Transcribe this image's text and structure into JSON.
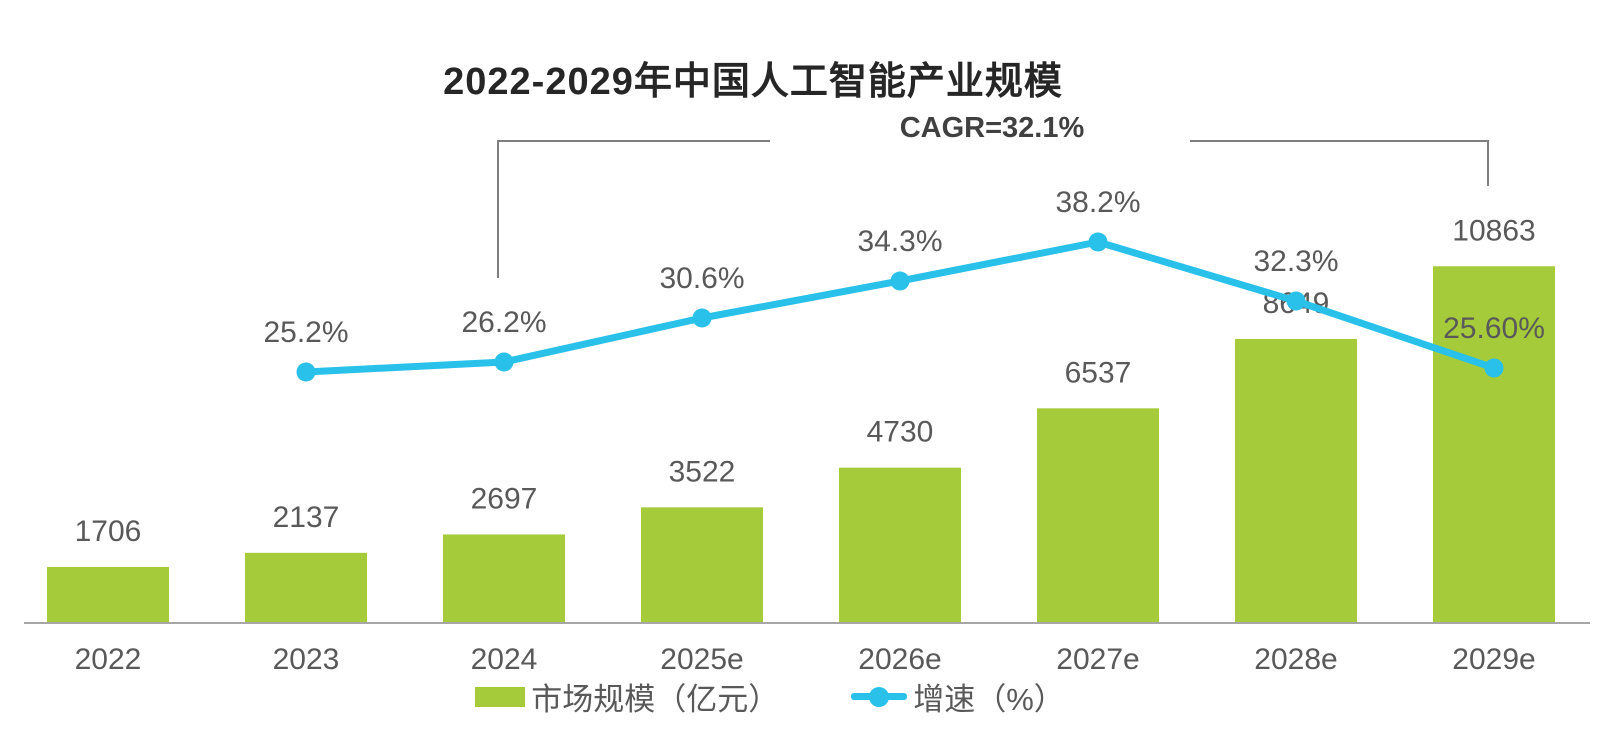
{
  "title": "2022-2029年中国人工智能产业规模",
  "annotation": {
    "cagr_label": "CAGR=32.1%",
    "from_category": "2024",
    "to_category": "2029e"
  },
  "legend": [
    {
      "label": "市场规模（亿元）",
      "type": "bar"
    },
    {
      "label": "增速（%）",
      "type": "line"
    }
  ],
  "colors": {
    "bar": "#A5CB3B",
    "line": "#29C1EA",
    "label": "#595959",
    "title": "#262626",
    "annotation_text": "#404040",
    "bracket": "#7F7F7F",
    "axis": "#A6A6A6",
    "background": "#FFFFFF"
  },
  "chart_data": {
    "type": "bar+line",
    "title": "2022-2029年中国人工智能产业规模",
    "categories": [
      "2022",
      "2023",
      "2024",
      "2025e",
      "2026e",
      "2027e",
      "2028e",
      "2029e"
    ],
    "series": [
      {
        "name": "市场规模（亿元）",
        "type": "bar",
        "axis": "left",
        "unit": "亿元",
        "values": [
          1706,
          2137,
          2697,
          3522,
          4730,
          6537,
          8649,
          10863
        ],
        "labels": [
          "1706",
          "2137",
          "2697",
          "3522",
          "4730",
          "6537",
          "8649",
          "10863"
        ]
      },
      {
        "name": "增速（%）",
        "type": "line",
        "axis": "right",
        "unit": "%",
        "categories": [
          "2023",
          "2024",
          "2025e",
          "2026e",
          "2027e",
          "2028e",
          "2029e"
        ],
        "values": [
          25.2,
          26.2,
          30.6,
          34.3,
          38.2,
          32.3,
          25.6
        ],
        "labels": [
          "25.2%",
          "26.2%",
          "30.6%",
          "34.3%",
          "38.2%",
          "32.3%",
          "25.60%"
        ]
      }
    ],
    "annotations": [
      {
        "text": "CAGR=32.1%",
        "span": [
          "2024",
          "2029e"
        ]
      }
    ],
    "axes": {
      "x": {
        "ticks": [
          "2022",
          "2023",
          "2024",
          "2025e",
          "2026e",
          "2027e",
          "2028e",
          "2029e"
        ]
      },
      "y_left": {
        "visible": false,
        "range": [
          0,
          11000
        ]
      },
      "y_right": {
        "visible": false,
        "range": [
          0,
          45
        ]
      }
    },
    "gridlines": false,
    "legend_position": "bottom"
  }
}
